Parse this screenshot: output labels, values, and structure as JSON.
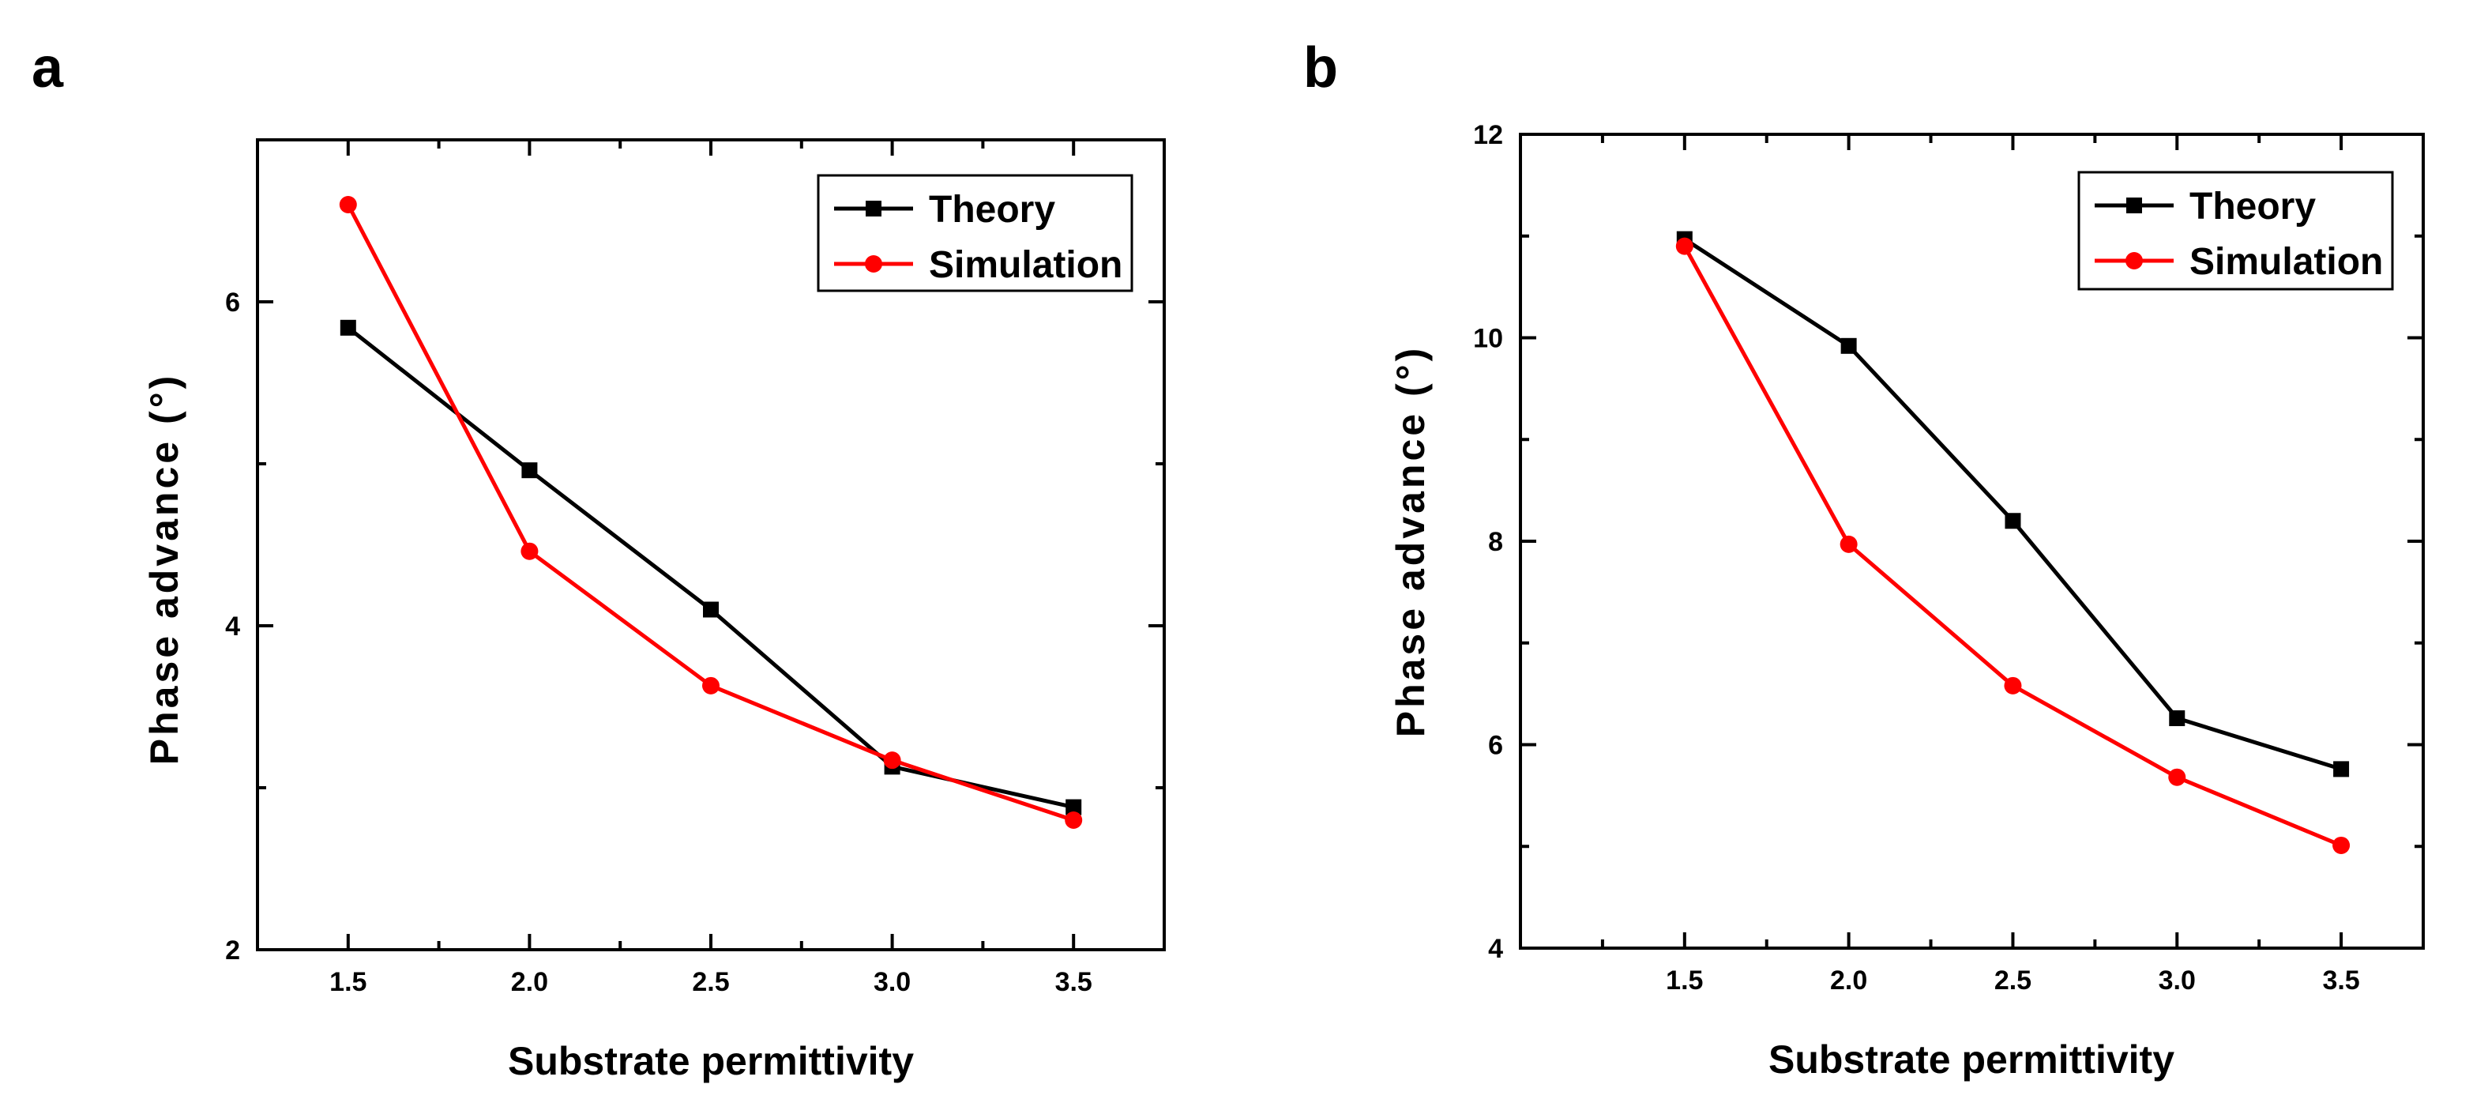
{
  "colors": {
    "theory": "#000000",
    "simulation": "#ff0000",
    "axis": "#000000"
  },
  "chart_data": [
    {
      "panel": "a",
      "type": "line",
      "xlabel": "Substrate permittivity",
      "ylabel": "Phase advance (°)",
      "xlim": [
        1.25,
        3.75
      ],
      "ylim": [
        2,
        7
      ],
      "x_ticks": [
        "1.5",
        "2.0",
        "2.5",
        "3.0",
        "3.5"
      ],
      "y_ticks": [
        "2",
        "4",
        "6"
      ],
      "legend_position": "top-right",
      "series": [
        {
          "name": "Theory",
          "marker": "square",
          "x": [
            1.5,
            2.0,
            2.5,
            3.0,
            3.5
          ],
          "values": [
            5.84,
            4.96,
            4.1,
            3.13,
            2.88
          ]
        },
        {
          "name": "Simulation",
          "marker": "circle",
          "x": [
            1.5,
            2.0,
            2.5,
            3.0,
            3.5
          ],
          "values": [
            6.6,
            4.46,
            3.63,
            3.17,
            2.8
          ]
        }
      ]
    },
    {
      "panel": "b",
      "type": "line",
      "xlabel": "Substrate permittivity",
      "ylabel": "Phase advance (°)",
      "xlim": [
        1.0,
        3.75
      ],
      "ylim": [
        4,
        12
      ],
      "x_ticks": [
        "1.5",
        "2.0",
        "2.5",
        "3.0",
        "3.5"
      ],
      "y_ticks": [
        "4",
        "6",
        "8",
        "10",
        "12"
      ],
      "legend_position": "top-right",
      "series": [
        {
          "name": "Theory",
          "marker": "square",
          "x": [
            1.5,
            2.0,
            2.5,
            3.0,
            3.5
          ],
          "values": [
            10.97,
            9.92,
            8.2,
            6.26,
            5.76
          ]
        },
        {
          "name": "Simulation",
          "marker": "circle",
          "x": [
            1.5,
            2.0,
            2.5,
            3.0,
            3.5
          ],
          "values": [
            10.9,
            7.97,
            6.58,
            5.68,
            5.01
          ]
        }
      ]
    }
  ]
}
